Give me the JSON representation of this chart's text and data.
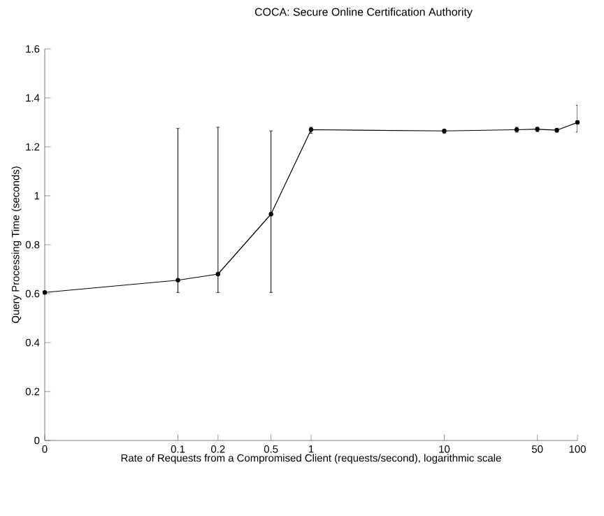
{
  "chart_data": {
    "type": "line",
    "xlabel": "Rate of Requests from a Compromised Client (requests/second), logarithmic scale",
    "ylabel": "Query Processing Time (seconds)",
    "annotations": [
      "COCA: Secure Online Certification Authority"
    ],
    "log": "x",
    "marker": "circle",
    "line_style": "solid",
    "xlim": [
      0.01,
      100
    ],
    "ylim": [
      0,
      1.6
    ],
    "xticks": [
      {
        "value": 0.01,
        "label": "0"
      },
      0.1,
      0.2,
      0.5,
      1,
      10,
      50,
      100
    ],
    "yticks": [
      0,
      0.2,
      0.4,
      0.6,
      0.8,
      1,
      1.2,
      1.4,
      1.6
    ],
    "x": [
      0.01,
      0.1,
      0.2,
      0.5,
      1,
      10,
      35,
      50,
      70,
      100
    ],
    "series": [
      {
        "color": "#000000",
        "values": [
          0.605,
          0.655,
          0.68,
          0.925,
          1.27,
          1.265,
          1.27,
          1.272,
          1.268,
          1.3
        ],
        "errors": [
          null,
          [
            0.605,
            1.275
          ],
          [
            0.605,
            1.28
          ],
          [
            0.605,
            1.265
          ],
          [
            1.255,
            1.28
          ],
          [
            1.255,
            1.27
          ],
          [
            1.26,
            1.28
          ],
          [
            1.262,
            1.28
          ],
          [
            1.26,
            1.275
          ],
          [
            1.26,
            1.37
          ]
        ]
      }
    ]
  }
}
